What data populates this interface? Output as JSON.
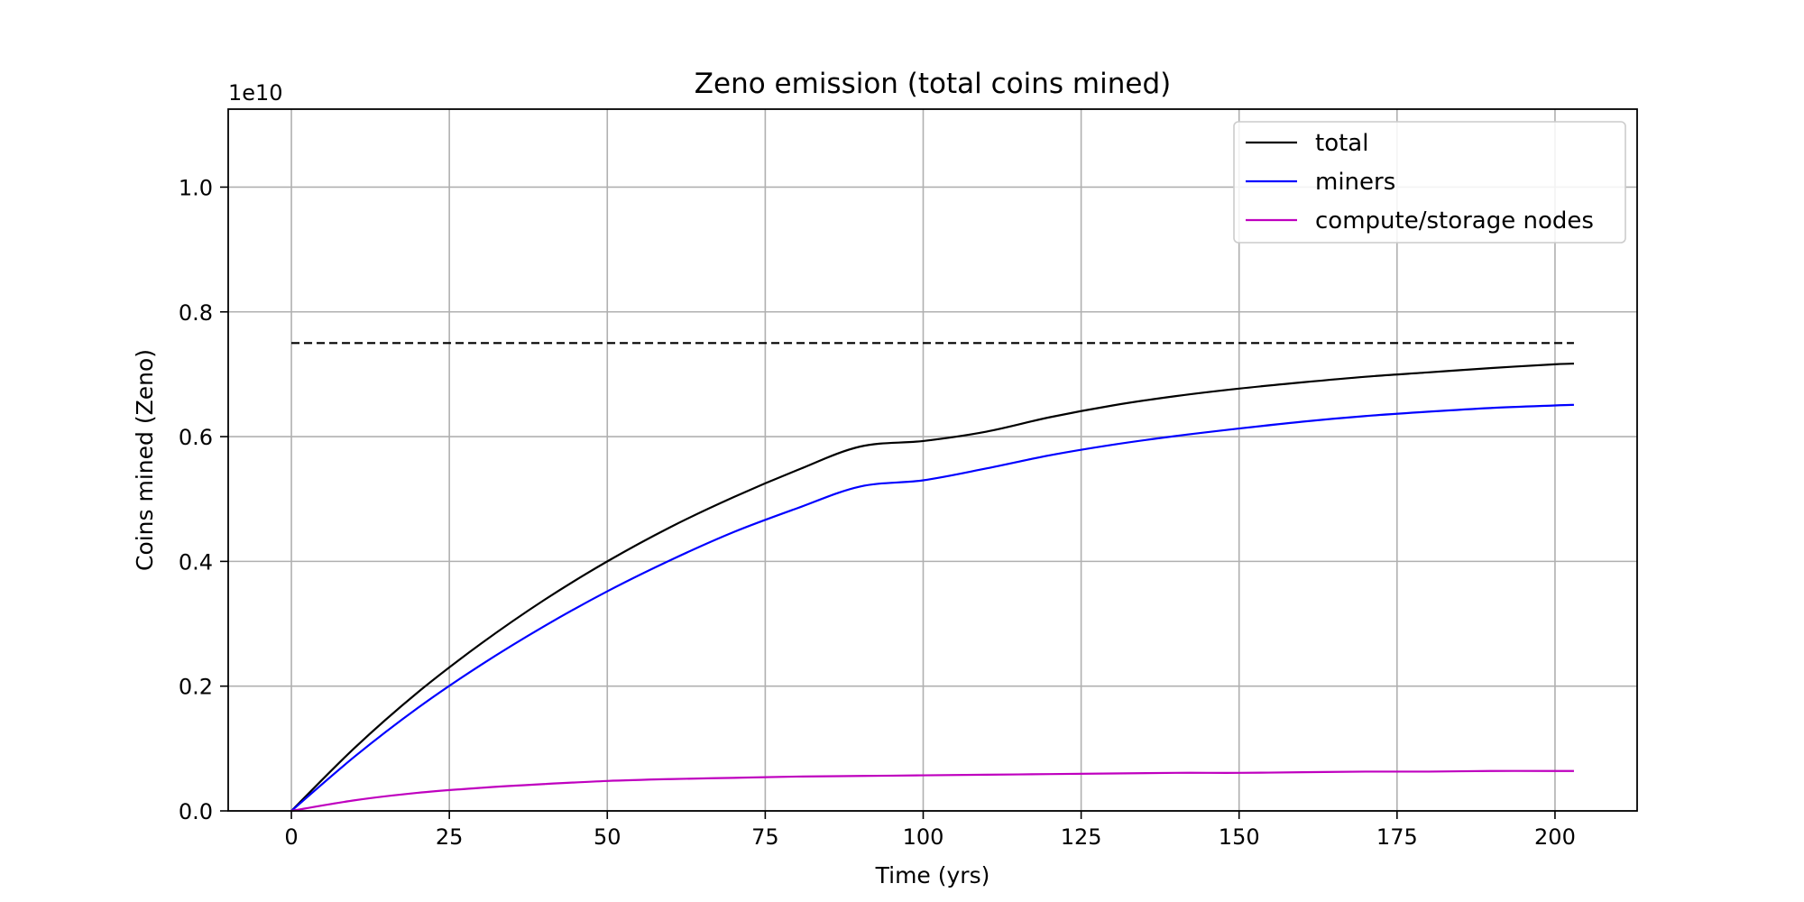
{
  "chart_data": {
    "type": "line",
    "title": "Zeno emission (total coins mined)",
    "xlabel": "Time (yrs)",
    "ylabel": "Coins mined (Zeno)",
    "y_offset_label": "1e10",
    "xlim": [
      -10,
      213
    ],
    "ylim": [
      0,
      1.125
    ],
    "x_ticks": [
      0,
      25,
      50,
      75,
      100,
      125,
      150,
      175,
      200
    ],
    "x_tick_labels": [
      "0",
      "25",
      "50",
      "75",
      "100",
      "125",
      "150",
      "175",
      "200"
    ],
    "y_ticks": [
      0.0,
      0.2,
      0.4,
      0.6,
      0.8,
      1.0
    ],
    "y_tick_labels": [
      "0.0",
      "0.2",
      "0.4",
      "0.6",
      "0.8",
      "1.0"
    ],
    "grid": true,
    "legend_position": "top-right",
    "x": [
      0,
      10,
      20,
      30,
      40,
      50,
      60,
      70,
      80,
      90,
      100,
      110,
      120,
      130,
      140,
      150,
      160,
      170,
      180,
      190,
      200,
      203
    ],
    "series": [
      {
        "name": "total",
        "color": "#000000",
        "values": [
          0.0,
          0.101,
          0.19,
          0.268,
          0.338,
          0.4,
          0.455,
          0.503,
          0.546,
          0.584,
          0.593,
          0.608,
          0.631,
          0.65,
          0.665,
          0.677,
          0.687,
          0.696,
          0.703,
          0.71,
          0.716,
          0.717
        ]
      },
      {
        "name": "miners",
        "color": "#0000ff",
        "values": [
          0.0,
          0.087,
          0.165,
          0.234,
          0.296,
          0.352,
          0.402,
          0.447,
          0.485,
          0.52,
          0.53,
          0.549,
          0.57,
          0.587,
          0.601,
          0.613,
          0.624,
          0.633,
          0.64,
          0.646,
          0.65,
          0.651
        ]
      },
      {
        "name": "compute/storage nodes",
        "color": "#bf00bf",
        "values": [
          0.0,
          0.017,
          0.029,
          0.037,
          0.043,
          0.048,
          0.051,
          0.053,
          0.055,
          0.056,
          0.057,
          0.058,
          0.059,
          0.06,
          0.061,
          0.061,
          0.062,
          0.063,
          0.063,
          0.064,
          0.064,
          0.064
        ]
      }
    ],
    "reference_line": {
      "y": 0.75,
      "x_range": [
        0,
        203
      ],
      "color": "#000000",
      "style": "dashed"
    }
  }
}
